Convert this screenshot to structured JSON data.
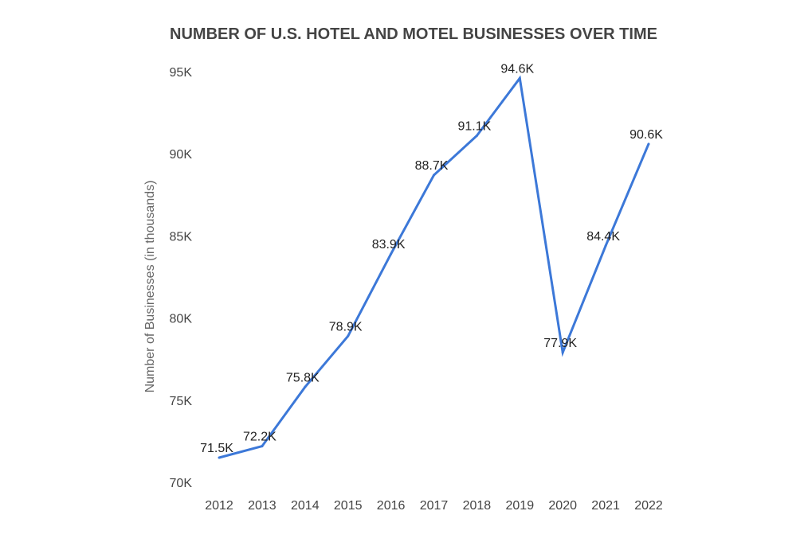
{
  "chart_data": {
    "type": "line",
    "title": "NUMBER OF U.S. HOTEL AND MOTEL BUSINESSES OVER TIME",
    "xlabel": "",
    "ylabel": "Number of Businesses (in thousands)",
    "categories": [
      "2012",
      "2013",
      "2014",
      "2015",
      "2016",
      "2017",
      "2018",
      "2019",
      "2020",
      "2021",
      "2022"
    ],
    "values": [
      71.5,
      72.2,
      75.8,
      78.9,
      83.9,
      88.7,
      91.1,
      94.6,
      77.9,
      84.4,
      90.6
    ],
    "data_labels": [
      "71.5K",
      "72.2K",
      "75.8K",
      "78.9K",
      "83.9K",
      "88.7K",
      "91.1K",
      "94.6K",
      "77.9K",
      "84.4K",
      "90.6K"
    ],
    "ylim": [
      70,
      95
    ],
    "yticks": [
      70,
      75,
      80,
      85,
      90,
      95
    ],
    "ytick_labels": [
      "70K",
      "75K",
      "80K",
      "85K",
      "90K",
      "95K"
    ],
    "grid": false,
    "line_color": "#3C78D8"
  }
}
